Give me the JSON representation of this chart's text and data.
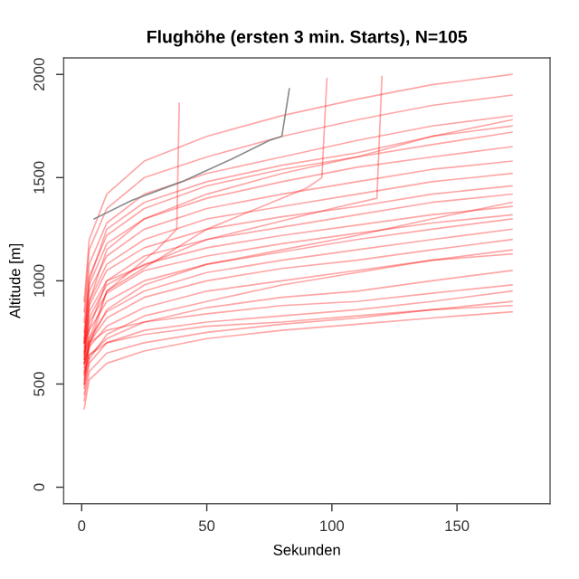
{
  "chart_data": {
    "type": "line",
    "title": "Flughöhe (ersten 3 min. Starts), N=105",
    "xlabel": "Sekunden",
    "ylabel": "Altitude [m]",
    "x": [
      1,
      3,
      10,
      25,
      50,
      80,
      110,
      140,
      172
    ],
    "xlim": [
      -7.2,
      187.2
    ],
    "ylim": [
      -80,
      2080
    ],
    "xticks": [
      0,
      50,
      100,
      150
    ],
    "yticks": [
      0,
      500,
      1000,
      1500,
      2000
    ],
    "grid": false,
    "legend": false,
    "marker": "none",
    "line_style": "solid",
    "series": [
      {
        "color": "#ff0000",
        "values": [
          380,
          520,
          600,
          660,
          720,
          760,
          790,
          820,
          850
        ]
      },
      {
        "color": "#ff0000",
        "values": [
          420,
          560,
          650,
          700,
          750,
          790,
          820,
          860,
          900
        ]
      },
      {
        "color": "#ff0000",
        "values": [
          450,
          600,
          700,
          760,
          800,
          830,
          860,
          900,
          950
        ]
      },
      {
        "color": "#ff0000",
        "values": [
          500,
          640,
          720,
          800,
          870,
          920,
          950,
          1000,
          1050
        ]
      },
      {
        "color": "#ff0000",
        "values": [
          520,
          680,
          780,
          870,
          950,
          1000,
          1050,
          1100,
          1150
        ]
      },
      {
        "color": "#ff0000",
        "values": [
          540,
          700,
          820,
          920,
          1000,
          1060,
          1100,
          1150,
          1200
        ]
      },
      {
        "color": "#ff0000",
        "values": [
          560,
          720,
          850,
          950,
          1040,
          1100,
          1150,
          1200,
          1250
        ]
      },
      {
        "color": "#ff0000",
        "values": [
          580,
          760,
          900,
          1000,
          1080,
          1140,
          1200,
          1250,
          1300
        ]
      },
      {
        "color": "#ff0000",
        "values": [
          600,
          800,
          940,
          1050,
          1120,
          1180,
          1230,
          1280,
          1320
        ]
      },
      {
        "color": "#ff0000",
        "values": [
          620,
          820,
          980,
          1080,
          1160,
          1220,
          1270,
          1320,
          1360
        ]
      },
      {
        "color": "#ff0000",
        "values": [
          640,
          850,
          1000,
          1120,
          1200,
          1260,
          1320,
          1380,
          1420
        ]
      },
      {
        "color": "#ff0000",
        "values": [
          660,
          880,
          1050,
          1160,
          1250,
          1310,
          1360,
          1420,
          1460
        ]
      },
      {
        "color": "#ff0000",
        "values": [
          680,
          900,
          1080,
          1200,
          1300,
          1360,
          1420,
          1480,
          1520
        ]
      },
      {
        "color": "#ff0000",
        "values": [
          700,
          950,
          1120,
          1250,
          1350,
          1420,
          1480,
          1540,
          1580
        ]
      },
      {
        "color": "#ff0000",
        "values": [
          720,
          980,
          1180,
          1300,
          1400,
          1480,
          1550,
          1600,
          1650
        ]
      },
      {
        "color": "#ff0000",
        "values": [
          750,
          1020,
          1220,
          1350,
          1460,
          1540,
          1600,
          1660,
          1720
        ]
      },
      {
        "color": "#ff0000",
        "values": [
          800,
          1080,
          1280,
          1420,
          1520,
          1600,
          1680,
          1750,
          1800
        ]
      },
      {
        "color": "#ff0000",
        "values": [
          850,
          1150,
          1350,
          1500,
          1600,
          1700,
          1780,
          1850,
          1900
        ]
      },
      {
        "color": "#ff0000",
        "values": [
          900,
          1200,
          1420,
          1580,
          1700,
          1800,
          1880,
          1950,
          2000
        ]
      },
      {
        "color": "#ff0000",
        "values": [
          550,
          640,
          700,
          740,
          780,
          800,
          830,
          860,
          880
        ]
      },
      {
        "color": "#ff0000",
        "values": [
          600,
          700,
          760,
          800,
          840,
          880,
          900,
          940,
          980
        ]
      },
      {
        "color": "#ff0000",
        "values": [
          480,
          620,
          740,
          830,
          900,
          980,
          1040,
          1100,
          1130
        ]
      },
      {
        "color": "#ff0000",
        "values": [
          500,
          700,
          860,
          980,
          1080,
          1150,
          1220,
          1300,
          1380
        ]
      },
      {
        "color": "#ff0000",
        "values": [
          620,
          900,
          1150,
          1300,
          1420,
          1520,
          1600,
          1700,
          1780
        ]
      },
      {
        "color": "#ff0000",
        "values": [
          700,
          1000,
          1250,
          1380,
          1480,
          1560,
          1620,
          1700,
          1750
        ]
      },
      {
        "color": "#ff0000",
        "x": [
          1,
          10,
          50,
          100,
          118,
          120
        ],
        "values": [
          700,
          1000,
          1200,
          1350,
          1400,
          1990
        ]
      },
      {
        "color": "#ff0000",
        "x": [
          1,
          10,
          50,
          90,
          96,
          98
        ],
        "values": [
          650,
          950,
          1250,
          1450,
          1500,
          1980
        ]
      },
      {
        "color": "#ff0000",
        "x": [
          1,
          10,
          30,
          38,
          39
        ],
        "values": [
          600,
          950,
          1150,
          1250,
          1860
        ]
      },
      {
        "color": "#808080",
        "x": [
          5,
          20,
          40,
          60,
          75,
          80,
          83
        ],
        "values": [
          1300,
          1390,
          1480,
          1590,
          1680,
          1700,
          1930
        ]
      }
    ]
  }
}
